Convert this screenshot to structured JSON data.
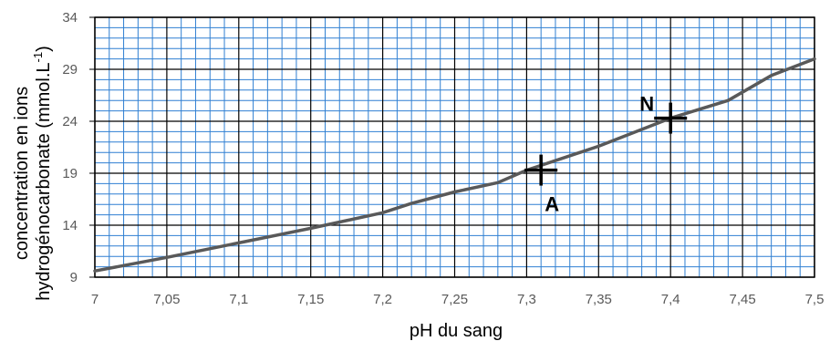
{
  "chart_data": {
    "type": "line",
    "title": "",
    "xlabel": "pH du sang",
    "ylabel_line1": "concentration en ions",
    "ylabel_line2_main": "hydrogénocarbonate (mmol.L",
    "ylabel_line2_sup": "-1",
    "ylabel_line2_end": ")",
    "xlim": [
      7,
      7.5
    ],
    "ylim": [
      9,
      34
    ],
    "x_ticks": [
      7,
      7.05,
      7.1,
      7.15,
      7.2,
      7.25,
      7.3,
      7.35,
      7.4,
      7.45,
      7.5
    ],
    "x_tick_labels": [
      "7",
      "7,05",
      "7,1",
      "7,15",
      "7,2",
      "7,25",
      "7,3",
      "7,35",
      "7,4",
      "7,45",
      "7,5"
    ],
    "y_ticks": [
      9,
      14,
      19,
      24,
      29,
      34
    ],
    "y_tick_labels": [
      "9",
      "14",
      "19",
      "24",
      "29",
      "34"
    ],
    "grid": true,
    "series": [
      {
        "x": [
          7.0,
          7.05,
          7.1,
          7.15,
          7.2,
          7.22,
          7.25,
          7.28,
          7.3,
          7.35,
          7.4,
          7.44,
          7.47,
          7.5
        ],
        "values": [
          9.6,
          10.9,
          12.3,
          13.7,
          15.2,
          16.1,
          17.2,
          18.1,
          19.3,
          21.6,
          24.3,
          26.0,
          28.4,
          30.0
        ]
      }
    ],
    "annotations": [
      {
        "label": "N",
        "x": 7.4,
        "y": 24.3
      },
      {
        "label": "A",
        "x": 7.31,
        "y": 19.3
      }
    ]
  }
}
